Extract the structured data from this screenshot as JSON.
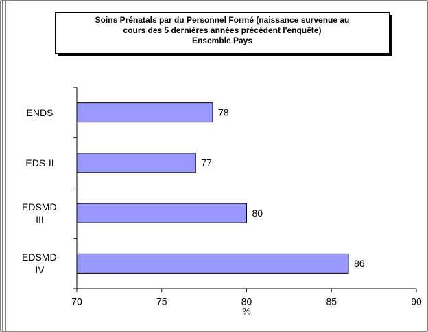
{
  "chart_data": {
    "type": "bar",
    "orientation": "horizontal",
    "title": "Soins Prénatals par du Personnel Formé (naissance survenue au cours des 5 dernières années précédent l'enquête)",
    "subtitle": "Ensemble Pays",
    "categories": [
      "ENDS",
      "EDS-II",
      "EDSMD-III",
      "EDSMD-IV"
    ],
    "values": [
      78,
      77,
      80,
      86
    ],
    "color": "#9999ff",
    "xlim": [
      70,
      90
    ],
    "xticks": [
      70,
      75,
      80,
      85,
      90
    ],
    "xlabel": "%"
  }
}
